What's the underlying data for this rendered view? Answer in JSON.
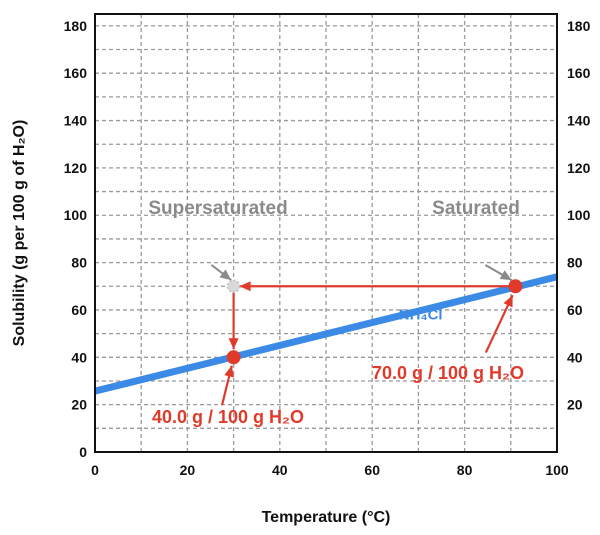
{
  "chart_data": {
    "type": "line",
    "xlabel": "Temperature (°C)",
    "ylabel": "Solubility (g per 100 g of H₂O)",
    "xlim": [
      0,
      100
    ],
    "ylim": [
      0,
      185
    ],
    "x_ticks": [
      "0",
      "20",
      "40",
      "60",
      "80",
      "100"
    ],
    "y_ticks_left": [
      "0",
      "20",
      "40",
      "60",
      "80",
      "100",
      "120",
      "140",
      "160",
      "180"
    ],
    "y_ticks_right": [
      "20",
      "40",
      "60",
      "80",
      "100",
      "120",
      "140",
      "160",
      "180"
    ],
    "grid": true,
    "series": [
      {
        "name": "NH₄Cl",
        "color": "#3b8be6",
        "x": [
          0,
          100
        ],
        "y": [
          25.7,
          74.0
        ]
      }
    ],
    "points": [
      {
        "x": 30,
        "y": 40,
        "color": "#e03a2a",
        "style": "solid"
      },
      {
        "x": 91,
        "y": 70,
        "color": "#e03a2a",
        "style": "solid"
      },
      {
        "x": 30,
        "y": 70,
        "color": "#bdbdbd",
        "style": "dotted"
      }
    ],
    "annotations": {
      "supersaturated": "Supersaturated",
      "saturated": "Saturated",
      "low_point": "40.0 g / 100 g H₂O",
      "high_point": "70.0 g / 100 g H₂O"
    },
    "colors": {
      "accent": "#e03a2a",
      "annotation_gray": "#8a8a8a",
      "grid": "#9a9a9a"
    }
  }
}
